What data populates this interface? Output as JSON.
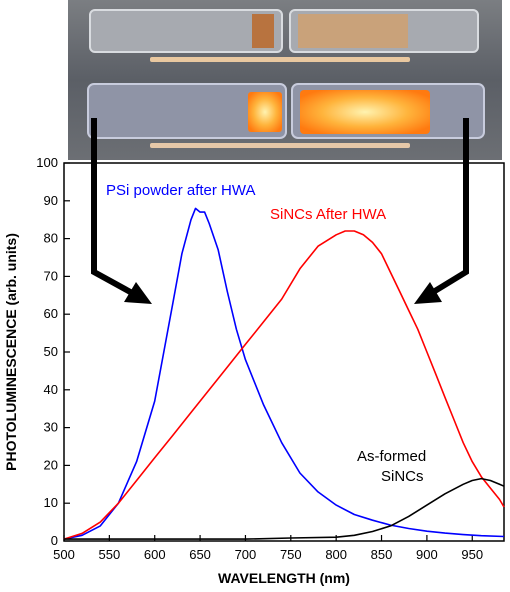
{
  "photo": {
    "description_icons": [
      "sample-tray-top-icon",
      "sample-tray-glowing-icon"
    ],
    "colors": {
      "background": "#6f7276",
      "glow_core": "#fff1a8",
      "glow_edge": "#ff8a14",
      "powder": "#c9a27a",
      "toothpick": "#e9c8a0"
    }
  },
  "chart_data": {
    "type": "line",
    "xlabel": "WAVELENGTH (nm)",
    "ylabel": "PHOTOLUMINESCENCE (arb. units)",
    "xlim": [
      500,
      985
    ],
    "ylim": [
      0,
      100
    ],
    "xticks": [
      500,
      550,
      600,
      650,
      700,
      750,
      800,
      850,
      900,
      950
    ],
    "yticks": [
      0,
      10,
      20,
      30,
      40,
      50,
      60,
      70,
      80,
      90,
      100
    ],
    "grid": false,
    "series": [
      {
        "name": "PSi powder after HWA",
        "color": "#0000ff",
        "points": [
          [
            500,
            0.5
          ],
          [
            520,
            1.5
          ],
          [
            540,
            4
          ],
          [
            560,
            10
          ],
          [
            580,
            21
          ],
          [
            600,
            37
          ],
          [
            610,
            50
          ],
          [
            620,
            63
          ],
          [
            630,
            76
          ],
          [
            640,
            85
          ],
          [
            645,
            88
          ],
          [
            650,
            87
          ],
          [
            655,
            87
          ],
          [
            660,
            84
          ],
          [
            670,
            77
          ],
          [
            680,
            66
          ],
          [
            690,
            56
          ],
          [
            700,
            48
          ],
          [
            720,
            36
          ],
          [
            740,
            26
          ],
          [
            760,
            18
          ],
          [
            780,
            13
          ],
          [
            800,
            9.5
          ],
          [
            820,
            7
          ],
          [
            840,
            5.5
          ],
          [
            860,
            4.2
          ],
          [
            880,
            3.3
          ],
          [
            900,
            2.6
          ],
          [
            920,
            2.1
          ],
          [
            940,
            1.7
          ],
          [
            960,
            1.4
          ],
          [
            985,
            1.2
          ]
        ]
      },
      {
        "name": "SiNCs After HWA",
        "color": "#ff0000",
        "points": [
          [
            500,
            0.5
          ],
          [
            520,
            2
          ],
          [
            540,
            5
          ],
          [
            560,
            10
          ],
          [
            580,
            16
          ],
          [
            600,
            22
          ],
          [
            620,
            28
          ],
          [
            640,
            34
          ],
          [
            660,
            40
          ],
          [
            680,
            46
          ],
          [
            700,
            52
          ],
          [
            720,
            58
          ],
          [
            740,
            64
          ],
          [
            760,
            72
          ],
          [
            780,
            78
          ],
          [
            800,
            81
          ],
          [
            810,
            82
          ],
          [
            820,
            82
          ],
          [
            830,
            81
          ],
          [
            840,
            79
          ],
          [
            850,
            76
          ],
          [
            860,
            71
          ],
          [
            870,
            66
          ],
          [
            880,
            61
          ],
          [
            890,
            56
          ],
          [
            900,
            50
          ],
          [
            910,
            44
          ],
          [
            920,
            38
          ],
          [
            930,
            32
          ],
          [
            940,
            26
          ],
          [
            950,
            21
          ],
          [
            960,
            17
          ],
          [
            970,
            14
          ],
          [
            980,
            11
          ],
          [
            985,
            9
          ]
        ]
      },
      {
        "name": "As-formed SiNCs",
        "color": "#000000",
        "points": [
          [
            500,
            0.5
          ],
          [
            600,
            0.5
          ],
          [
            700,
            0.5
          ],
          [
            750,
            0.8
          ],
          [
            800,
            1
          ],
          [
            820,
            1.5
          ],
          [
            840,
            2.5
          ],
          [
            860,
            4
          ],
          [
            880,
            6.5
          ],
          [
            900,
            9.5
          ],
          [
            920,
            12.5
          ],
          [
            940,
            15
          ],
          [
            950,
            16
          ],
          [
            960,
            16.5
          ],
          [
            970,
            16
          ],
          [
            980,
            15
          ],
          [
            985,
            14.5
          ]
        ]
      }
    ],
    "annotations": [
      {
        "text": "PSi powder after HWA",
        "color": "#0000ff"
      },
      {
        "text": "SiNCs After HWA",
        "color": "#ff0000"
      },
      {
        "text": "As-formed",
        "color": "#000000"
      },
      {
        "text": "SiNCs",
        "color": "#000000"
      }
    ]
  }
}
